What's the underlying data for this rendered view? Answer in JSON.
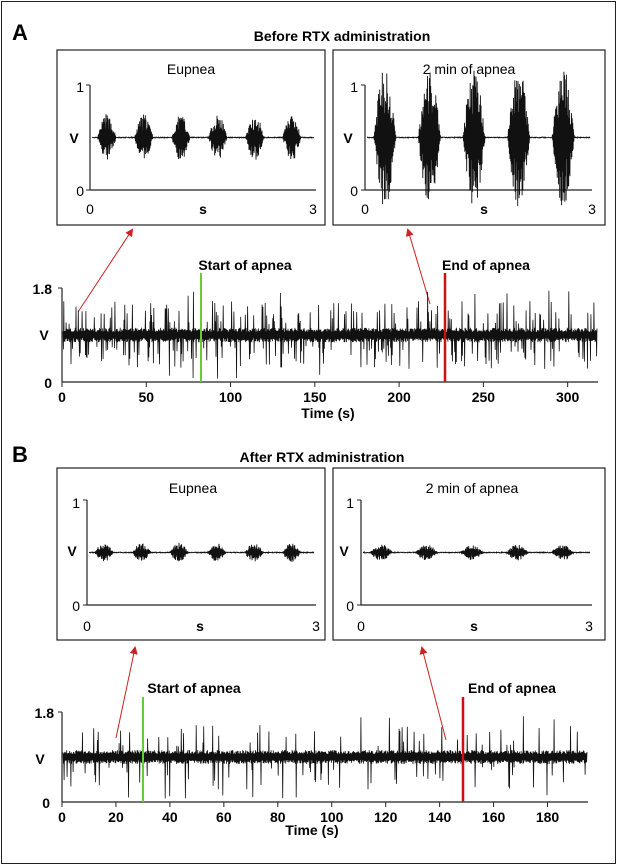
{
  "panels": [
    {
      "letter": "A",
      "title": "Before RTX administration",
      "insets": [
        {
          "title": "Eupnea",
          "y_top": "1",
          "y_mid": "V",
          "y_bot": "0",
          "x_left": "0",
          "x_mid": "s",
          "x_right": "3"
        },
        {
          "title": "2 min of apnea",
          "y_top": "1",
          "y_mid": "V",
          "y_bot": "0",
          "x_left": "0",
          "x_mid": "s",
          "x_right": "3"
        }
      ],
      "trace": {
        "y_top": "1.8",
        "y_mid": "V",
        "y_bot": "0",
        "xlabel": "Time (s)",
        "ticks": [
          "0",
          "50",
          "100",
          "150",
          "200",
          "250",
          "300"
        ],
        "start_label": "Start of apnea",
        "end_label": "End of apnea"
      }
    },
    {
      "letter": "B",
      "title": "After RTX administration",
      "insets": [
        {
          "title": "Eupnea",
          "y_top": "1",
          "y_mid": "V",
          "y_bot": "0",
          "x_left": "0",
          "x_mid": "s",
          "x_right": "3"
        },
        {
          "title": "2 min of apnea",
          "y_top": "1",
          "y_mid": "V",
          "y_bot": "0",
          "x_left": "0",
          "x_mid": "s",
          "x_right": "3"
        }
      ],
      "trace": {
        "y_top": "1.8",
        "y_mid": "V",
        "y_bot": "0",
        "xlabel": "Time (s)",
        "ticks": [
          "0",
          "20",
          "40",
          "60",
          "80",
          "100",
          "120",
          "140",
          "160",
          "180"
        ],
        "start_label": "Start of apnea",
        "end_label": "End of apnea"
      }
    }
  ],
  "chart_data": [
    {
      "type": "line",
      "title": "Before RTX administration",
      "subplot": "Eupnea",
      "xlabel": "s",
      "ylabel": "V",
      "xlim": [
        0,
        3
      ],
      "ylim": [
        0,
        1
      ],
      "baseline": 0.5,
      "bursts": 6,
      "burst_amplitude": 0.15
    },
    {
      "type": "line",
      "title": "Before RTX administration",
      "subplot": "2 min of apnea",
      "xlabel": "s",
      "ylabel": "V",
      "xlim": [
        0,
        3
      ],
      "ylim": [
        0,
        1
      ],
      "baseline": 0.5,
      "bursts": 5,
      "burst_amplitude": 0.45
    },
    {
      "type": "line",
      "title": "Before RTX administration",
      "xlabel": "Time (s)",
      "ylabel": "V",
      "xlim": [
        0,
        318
      ],
      "ylim": [
        0,
        1.8
      ],
      "baseline": 0.9,
      "xticks": [
        0,
        50,
        100,
        150,
        200,
        250,
        300
      ],
      "events": [
        {
          "label": "Start of apnea",
          "x": 82,
          "color": "#66cc33"
        },
        {
          "label": "End of apnea",
          "x": 227,
          "color": "#cc1111"
        }
      ]
    },
    {
      "type": "line",
      "title": "After RTX administration",
      "subplot": "Eupnea",
      "xlabel": "s",
      "ylabel": "V",
      "xlim": [
        0,
        3
      ],
      "ylim": [
        0,
        1
      ],
      "baseline": 0.5,
      "bursts": 6,
      "burst_amplitude": 0.06
    },
    {
      "type": "line",
      "title": "After RTX administration",
      "subplot": "2 min of apnea",
      "xlabel": "s",
      "ylabel": "V",
      "xlim": [
        0,
        3
      ],
      "ylim": [
        0,
        1
      ],
      "baseline": 0.5,
      "bursts": 5,
      "burst_amplitude": 0.05
    },
    {
      "type": "line",
      "title": "After RTX administration",
      "xlabel": "Time (s)",
      "ylabel": "V",
      "xlim": [
        0,
        195
      ],
      "ylim": [
        0,
        1.8
      ],
      "baseline": 0.9,
      "xticks": [
        0,
        20,
        40,
        60,
        80,
        100,
        120,
        140,
        160,
        180
      ],
      "events": [
        {
          "label": "Start of apnea",
          "x": 30,
          "color": "#66cc33"
        },
        {
          "label": "End of apnea",
          "x": 149,
          "color": "#cc1111"
        }
      ]
    }
  ],
  "colors": {
    "trace": "#111111",
    "start_marker": "#66cc33",
    "end_marker": "#cc1111",
    "arrow": "#cc2222"
  }
}
